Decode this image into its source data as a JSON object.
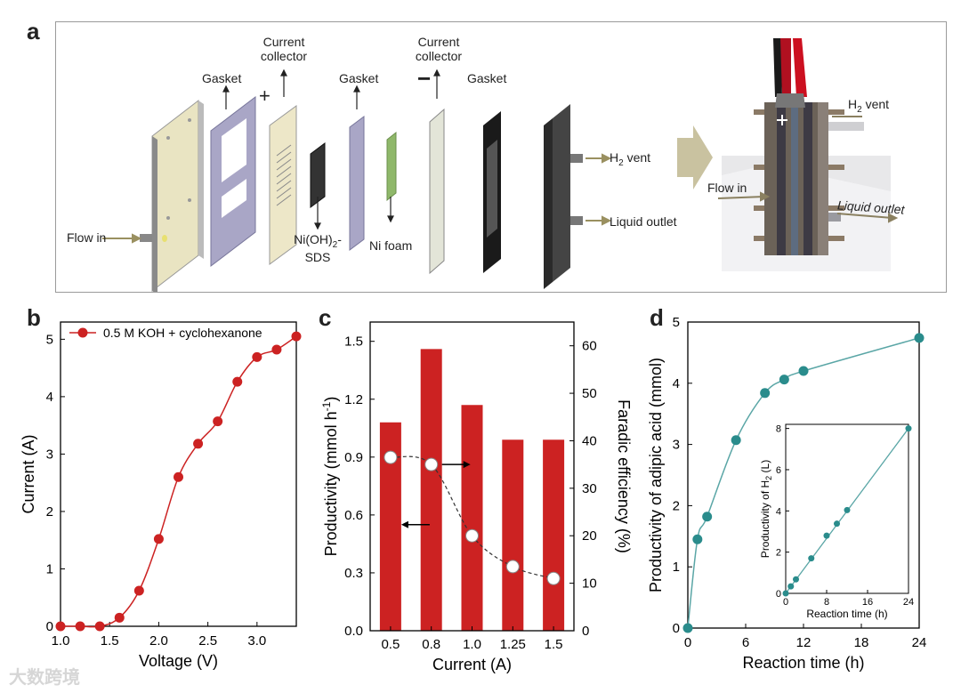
{
  "panel_a": {
    "letter": "a",
    "labels": {
      "gasket_1": "Gasket",
      "current_collector_1a": "Current",
      "current_collector_1b": "collector",
      "plus": "+",
      "gasket_2": "Gasket",
      "current_collector_2a": "Current",
      "current_collector_2b": "collector",
      "minus": "−",
      "gasket_3": "Gasket",
      "catalyst_a": "Ni(OH)",
      "catalyst_sub": "2",
      "catalyst_dash": "-",
      "catalyst_b": "SDS",
      "ni_foam": "Ni foam",
      "flow_in": "Flow in",
      "h2_vent": "H",
      "h2_sub": "2",
      "vent_word": " vent",
      "liquid_outlet": "Liquid outlet",
      "photo_h2_vent": "H",
      "photo_h2_sub": "2",
      "photo_vent_word": " vent",
      "photo_flow_in": "Flow in",
      "photo_liquid_outlet": "Liquid outlet"
    }
  },
  "chart_data": [
    {
      "panel": "b",
      "type": "line",
      "title": "",
      "xlabel": "Voltage (V)",
      "ylabel": "Current (A)",
      "xlim": [
        1.0,
        3.4
      ],
      "ylim": [
        0,
        5.3
      ],
      "xticks": [
        1.0,
        1.5,
        2.0,
        2.5,
        3.0
      ],
      "xtick_labels": [
        "1.0",
        "1.5",
        "2.0",
        "2.5",
        "3.0"
      ],
      "yticks": [
        0,
        1,
        2,
        3,
        4,
        5
      ],
      "ytick_labels": [
        "0",
        "1",
        "2",
        "3",
        "4",
        "5"
      ],
      "legend": "0.5 M KOH + cyclohexanone",
      "series": [
        {
          "name": "0.5 M KOH + cyclohexanone",
          "x": [
            1.0,
            1.2,
            1.4,
            1.6,
            1.8,
            2.0,
            2.2,
            2.4,
            2.6,
            2.8,
            3.0,
            3.2,
            3.4
          ],
          "y": [
            0.0,
            0.0,
            0.0,
            0.15,
            0.62,
            1.52,
            2.6,
            3.18,
            3.57,
            4.26,
            4.69,
            4.82,
            5.05
          ]
        }
      ]
    },
    {
      "panel": "c",
      "type": "bar",
      "title": "",
      "xlabel": "Current (A)",
      "ylabel": "Productivity (mmol h",
      "ylabel_sup": "-1",
      "ylabel_end": ")",
      "y2label": "Faradic efficiency (%)",
      "categories": [
        "0.5",
        "0.8",
        "1.0",
        "1.25",
        "1.5"
      ],
      "ylim": [
        0,
        1.6
      ],
      "yticks": [
        0.0,
        0.3,
        0.6,
        0.9,
        1.2,
        1.5
      ],
      "ytick_labels": [
        "0.0",
        "0.3",
        "0.6",
        "0.9",
        "1.2",
        "1.5"
      ],
      "y2lim": [
        0,
        65
      ],
      "y2ticks": [
        0,
        10,
        20,
        30,
        40,
        50,
        60
      ],
      "y2tick_labels": [
        "0",
        "10",
        "20",
        "30",
        "40",
        "50",
        "60"
      ],
      "series": [
        {
          "name": "Productivity",
          "axis": "left",
          "values": [
            1.08,
            1.46,
            1.17,
            0.99,
            0.99
          ]
        },
        {
          "name": "Faradic efficiency",
          "axis": "right",
          "values": [
            36.5,
            35,
            20,
            13.5,
            11
          ]
        }
      ]
    },
    {
      "panel": "d",
      "type": "scatter",
      "title": "",
      "xlabel": "Reaction time (h)",
      "ylabel": "Productivity of adipic acid (mmol)",
      "xlim": [
        0,
        24
      ],
      "ylim": [
        0,
        5
      ],
      "xticks": [
        0,
        6,
        12,
        18,
        24
      ],
      "xtick_labels": [
        "0",
        "6",
        "12",
        "18",
        "24"
      ],
      "yticks": [
        0,
        1,
        2,
        3,
        4,
        5
      ],
      "ytick_labels": [
        "0",
        "1",
        "2",
        "3",
        "4",
        "5"
      ],
      "series": [
        {
          "name": "Adipic acid",
          "x": [
            0,
            1,
            2,
            5,
            8,
            10,
            12,
            24
          ],
          "y": [
            0,
            1.45,
            1.82,
            3.07,
            3.84,
            4.06,
            4.2,
            4.74
          ]
        }
      ],
      "inset": {
        "xlabel": "Reaction time (h)",
        "ylabel": "Productivity of H",
        "ylabel_sub": "2",
        "ylabel_end": " (L)",
        "xlim": [
          0,
          24
        ],
        "ylim": [
          0,
          8.2
        ],
        "xticks": [
          0,
          8,
          16,
          24
        ],
        "xtick_labels": [
          "0",
          "8",
          "16",
          "24"
        ],
        "yticks": [
          0,
          2,
          4,
          6,
          8
        ],
        "ytick_labels": [
          "0",
          "2",
          "4",
          "6",
          "8"
        ],
        "series": [
          {
            "name": "H2",
            "x": [
              0,
              1,
              2,
              5,
              8,
              10,
              12,
              24
            ],
            "y": [
              0,
              0.34,
              0.68,
              1.7,
              2.8,
              3.38,
              4.04,
              8.0
            ]
          }
        ]
      }
    }
  ],
  "panel_letters": {
    "b": "b",
    "c": "c",
    "d": "d"
  },
  "colors": {
    "red": "#cc2222",
    "teal": "#2a8c8c",
    "teal_light": "#5aa6a6"
  },
  "watermark": "大数跨境"
}
